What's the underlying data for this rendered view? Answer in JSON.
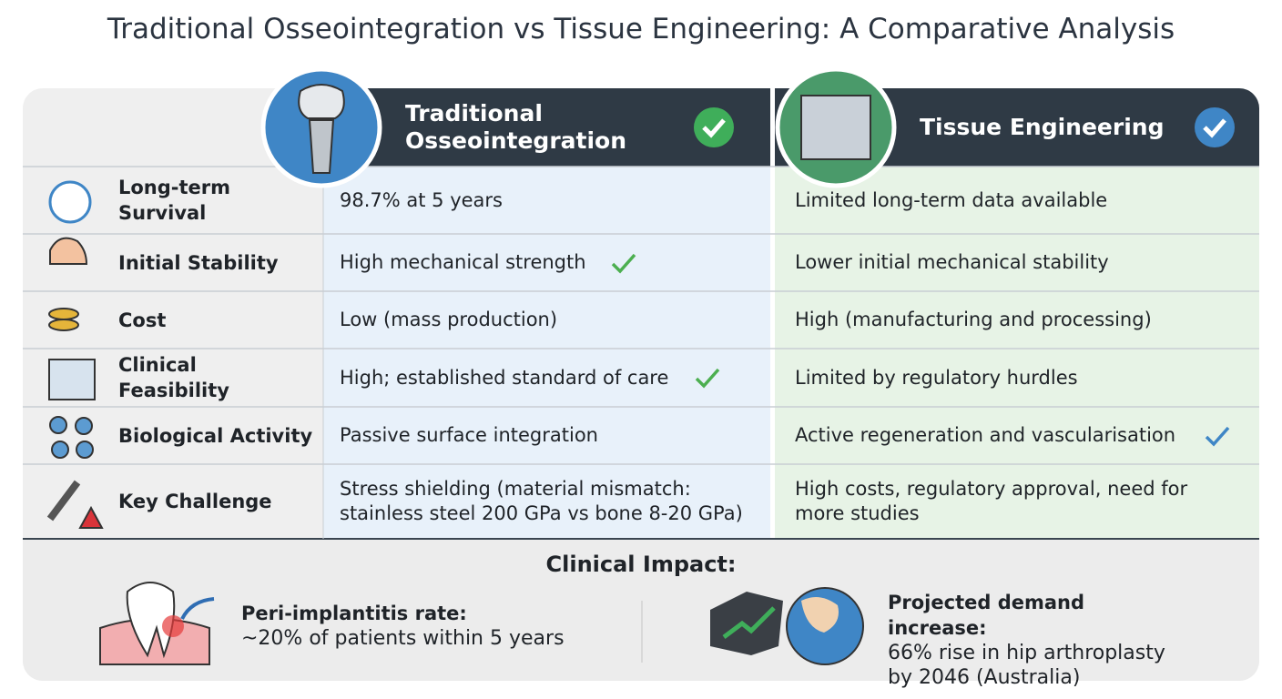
{
  "title": "Traditional Osseointegration vs Tissue Engineering: A Comparative Analysis",
  "table": {
    "columns": [
      "Traditional Osseointegration",
      "Tissue Engineering"
    ],
    "rows": [
      {
        "label": "Long-term Survival",
        "cells": [
          "98.7% at 5 years",
          "Limited long-term data available"
        ]
      },
      {
        "label": "Initial Stability",
        "cells": [
          "High mechanical strength",
          "Lower initial mechanical stability"
        ]
      },
      {
        "label": "Cost",
        "cells": [
          "Low (mass production)",
          "High (manufacturing and processing)"
        ]
      },
      {
        "label": "Clinical Feasibility",
        "cells": [
          "High; established standard of care",
          "Limited by regulatory hurdles"
        ]
      },
      {
        "label": "Biological Activity",
        "cells": [
          "Passive surface integration",
          "Active regeneration and vascularisation"
        ]
      },
      {
        "label": "Key Challenge",
        "cells": [
          "Stress shielding (material mismatch: stainless steel 200 GPa vs bone 8-20 GPa)",
          "High costs, regulatory approval, need for more studies"
        ]
      }
    ]
  },
  "impact": {
    "heading": "Clinical Impact:",
    "items": [
      {
        "title": "Peri-implantitis rate:",
        "text": "~20% of patients within 5 years"
      },
      {
        "title": "Projected demand increase:",
        "text": "66% rise in hip arthroplasty by 2046 (Australia)"
      }
    ]
  }
}
